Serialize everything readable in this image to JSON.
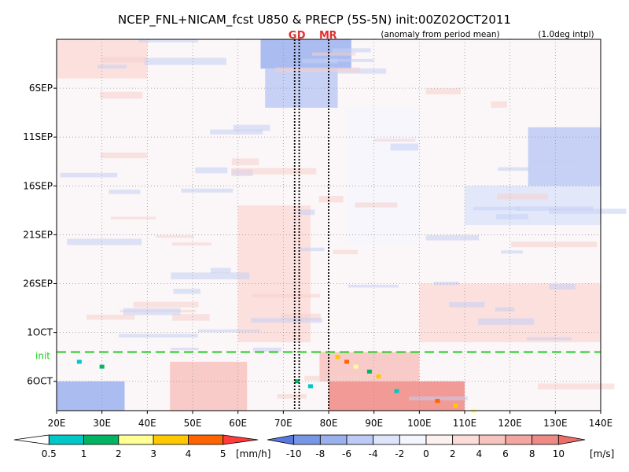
{
  "chart_data": {
    "type": "heatmap",
    "title": "NCEP_FNL+NICAM_fcst U850 & PRECP (5S-5N) init:00Z02OCT2011",
    "subtitle": "(anomaly from period mean)",
    "note": "(1.0deg intpl)",
    "x_ticks": [
      "20E",
      "30E",
      "40E",
      "50E",
      "60E",
      "70E",
      "80E",
      "90E",
      "100E",
      "110E",
      "120E",
      "130E",
      "140E"
    ],
    "x_tick_values": [
      20,
      30,
      40,
      50,
      60,
      70,
      80,
      90,
      100,
      110,
      120,
      130,
      140
    ],
    "xlim": [
      20,
      140
    ],
    "y_ticks": [
      "6SEP",
      "11SEP",
      "16SEP",
      "21SEP",
      "26SEP",
      "1OCT",
      "6OCT"
    ],
    "y_tick_days": [
      6,
      11,
      16,
      21,
      26,
      31,
      36
    ],
    "ylim_days": [
      1,
      39
    ],
    "init_label": "init",
    "init_day": 33,
    "reference_lines": [
      {
        "label": "GD",
        "letters": [
          "G",
          "D"
        ],
        "lon": [
          72.5,
          73.5
        ]
      },
      {
        "label": "MR",
        "letters": [
          "M",
          "R"
        ],
        "lon": [
          80
        ]
      }
    ],
    "precip_colorbar": {
      "labels": [
        "0.5",
        "1",
        "2",
        "3",
        "4",
        "5"
      ],
      "unit": "[mm/h]",
      "colors": [
        "#ffffff",
        "#00c8c8",
        "#00b464",
        "#ffff96",
        "#ffc800",
        "#ff6400",
        "#ff3c3c"
      ]
    },
    "u850_colorbar": {
      "labels": [
        "-10",
        "-8",
        "-6",
        "-4",
        "-2",
        "0",
        "2",
        "4",
        "6",
        "8",
        "10"
      ],
      "unit": "[m/s]",
      "colors": [
        "#5a78dc",
        "#7896e6",
        "#9bb1ee",
        "#bccaf5",
        "#dde5fa",
        "#f4f6fd",
        "#fdf1f0",
        "#fbdcd9",
        "#f7c3bf",
        "#f3a6a1",
        "#ee8a85",
        "#ea6e6a"
      ]
    },
    "u850_regions": [
      {
        "lon": [
          65,
          85
        ],
        "day": [
          1,
          4
        ],
        "value": -8
      },
      {
        "lon": [
          66,
          82
        ],
        "day": [
          4,
          8
        ],
        "value": -5
      },
      {
        "lon": [
          124,
          140
        ],
        "day": [
          10,
          16
        ],
        "value": -6
      },
      {
        "lon": [
          110,
          140
        ],
        "day": [
          16,
          20
        ],
        "value": -3
      },
      {
        "lon": [
          20,
          35
        ],
        "day": [
          36,
          39
        ],
        "value": -8
      },
      {
        "lon": [
          80,
          110
        ],
        "day": [
          36,
          39
        ],
        "value": 8
      },
      {
        "lon": [
          78,
          100
        ],
        "day": [
          33,
          36
        ],
        "value": 5
      },
      {
        "lon": [
          100,
          140
        ],
        "day": [
          26,
          32
        ],
        "value": 3
      },
      {
        "lon": [
          20,
          40
        ],
        "day": [
          1,
          5
        ],
        "value": 3
      },
      {
        "lon": [
          45,
          62
        ],
        "day": [
          34,
          39
        ],
        "value": 4
      },
      {
        "lon": [
          84,
          100
        ],
        "day": [
          8,
          22
        ],
        "value": -2
      },
      {
        "lon": [
          60,
          76
        ],
        "day": [
          18,
          32
        ],
        "value": 2
      }
    ],
    "precip_points": [
      {
        "lon": 82,
        "day": 33.5,
        "value": 4
      },
      {
        "lon": 84,
        "day": 34,
        "value": 5
      },
      {
        "lon": 86,
        "day": 34.5,
        "value": 3
      },
      {
        "lon": 89,
        "day": 35,
        "value": 2
      },
      {
        "lon": 91,
        "day": 35.5,
        "value": 4
      },
      {
        "lon": 73,
        "day": 36,
        "value": 2
      },
      {
        "lon": 76,
        "day": 36.5,
        "value": 1
      },
      {
        "lon": 104,
        "day": 38,
        "value": 5
      },
      {
        "lon": 108,
        "day": 38.5,
        "value": 4
      },
      {
        "lon": 112,
        "day": 39,
        "value": 3
      },
      {
        "lon": 25,
        "day": 34,
        "value": 1
      },
      {
        "lon": 30,
        "day": 34.5,
        "value": 2
      },
      {
        "lon": 95,
        "day": 37,
        "value": 1
      }
    ]
  }
}
